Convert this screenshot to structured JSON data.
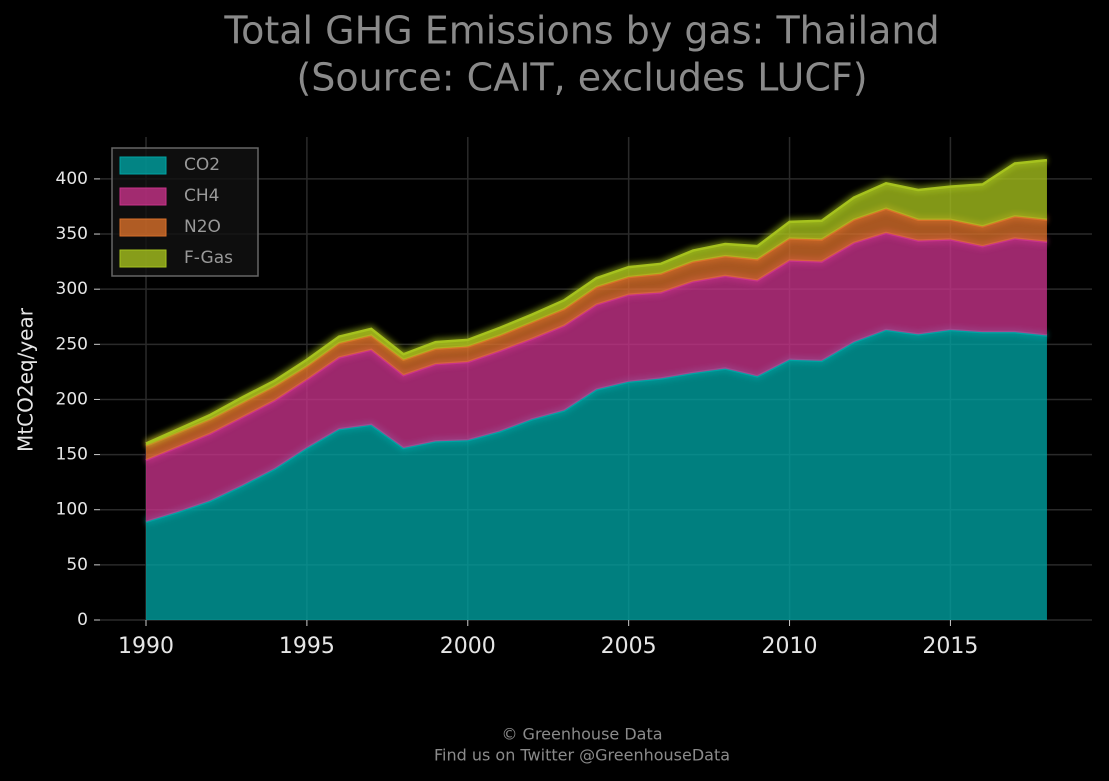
{
  "chart_data": {
    "type": "stacked-area",
    "title": "Total GHG Emissions by gas: Thailand",
    "subtitle": "(Source: CAIT, excludes LUCF)",
    "y_label": "MtCO2eq/year",
    "footer": [
      "© Greenhouse Data",
      "Find us on Twitter @GreenhouseData"
    ],
    "x": [
      1990,
      1991,
      1992,
      1993,
      1994,
      1995,
      1996,
      1997,
      1998,
      1999,
      2000,
      2001,
      2002,
      2003,
      2004,
      2005,
      2006,
      2007,
      2008,
      2009,
      2010,
      2011,
      2012,
      2013,
      2014,
      2015,
      2016,
      2017,
      2018
    ],
    "series": [
      {
        "name": "CO2",
        "color": "#00a3a3",
        "values": [
          89,
          98,
          108,
          122,
          137,
          156,
          173,
          177,
          156,
          162,
          163,
          171,
          182,
          190,
          209,
          216,
          219,
          224,
          228,
          221,
          236,
          235,
          252,
          263,
          259,
          263,
          261,
          261,
          258
        ]
      },
      {
        "name": "CH4",
        "color": "#c8338a",
        "values": [
          56,
          59,
          61,
          62,
          62,
          62,
          65,
          68,
          66,
          70,
          71,
          73,
          73,
          77,
          77,
          79,
          78,
          83,
          84,
          87,
          90,
          90,
          90,
          88,
          85,
          82,
          78,
          85,
          85
        ]
      },
      {
        "name": "N2O",
        "color": "#d9702a",
        "values": [
          13,
          13,
          13,
          13,
          13,
          12,
          13,
          13,
          14,
          14,
          14,
          14,
          15,
          15,
          16,
          16,
          17,
          18,
          18,
          19,
          20,
          20,
          21,
          22,
          19,
          18,
          18,
          20,
          20
        ]
      },
      {
        "name": "F-Gas",
        "color": "#a6c21e",
        "values": [
          2,
          3,
          4,
          5,
          5,
          6,
          6,
          6,
          5,
          6,
          6,
          7,
          7,
          8,
          8,
          9,
          9,
          10,
          11,
          12,
          15,
          17,
          20,
          23,
          27,
          30,
          38,
          48,
          54
        ]
      }
    ],
    "xlim": [
      1988.57,
      2019.4
    ],
    "ylim": [
      0,
      438
    ],
    "xticks": [
      1990,
      1995,
      2000,
      2005,
      2010,
      2015
    ],
    "yticks": [
      0,
      50,
      100,
      150,
      200,
      250,
      300,
      350,
      400
    ],
    "grid": true,
    "legend": "upper left"
  }
}
